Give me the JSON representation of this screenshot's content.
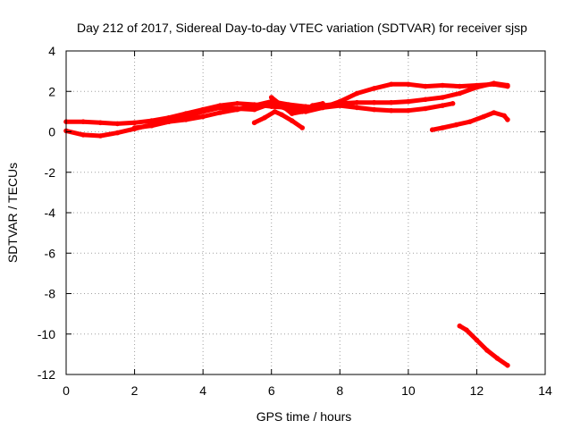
{
  "chart_data": {
    "type": "line",
    "title": "Day 212 of 2017, Sidereal Day-to-day VTEC variation (SDTVAR) for receiver sjsp",
    "xlabel": "GPS time / hours",
    "ylabel": "SDTVAR / TECUs",
    "xlim": [
      0,
      14
    ],
    "ylim": [
      -12,
      4
    ],
    "xticks": [
      "0",
      "2",
      "4",
      "6",
      "8",
      "10",
      "12",
      "14"
    ],
    "yticks": [
      "4",
      "2",
      "0",
      "-2",
      "-4",
      "-6",
      "-8",
      "-10",
      "-12"
    ],
    "grid": true,
    "series_color": "#ff0000",
    "series": [
      {
        "name": "arc-1",
        "x": [
          0,
          0.5,
          1.0,
          1.5,
          2.0,
          2.5,
          3.0,
          3.5,
          4.0,
          4.5,
          5.0,
          5.5,
          6.0,
          6.5,
          7.0,
          7.5,
          8.0,
          8.5,
          9.0,
          9.5,
          10.0,
          10.5,
          11.0,
          11.5,
          12.0,
          12.5,
          12.9
        ],
        "y": [
          0.5,
          0.5,
          0.45,
          0.4,
          0.45,
          0.55,
          0.7,
          0.9,
          1.1,
          1.3,
          1.4,
          1.35,
          1.25,
          1.2,
          1.2,
          1.3,
          1.4,
          1.45,
          1.45,
          1.45,
          1.5,
          1.6,
          1.7,
          1.9,
          2.2,
          2.4,
          2.3
        ]
      },
      {
        "name": "arc-2",
        "x": [
          0,
          0.5,
          1.0,
          1.5,
          2.0,
          2.5,
          3.0,
          3.5,
          4.0,
          4.5,
          5.0,
          5.5,
          6.0,
          6.5,
          7.0,
          7.5,
          8.0,
          8.5,
          9.0,
          9.5,
          10.0,
          10.5,
          11.0,
          11.3
        ],
        "y": [
          0.05,
          -0.15,
          -0.2,
          -0.05,
          0.15,
          0.35,
          0.5,
          0.6,
          0.75,
          0.95,
          1.1,
          1.3,
          1.5,
          1.35,
          1.25,
          1.2,
          1.3,
          1.2,
          1.1,
          1.05,
          1.05,
          1.15,
          1.3,
          1.4
        ]
      },
      {
        "name": "arc-3",
        "x": [
          2.0,
          2.5,
          3.0,
          3.5,
          4.0,
          4.5,
          5.0,
          5.5,
          6.0,
          6.5,
          7.0,
          7.5,
          8.0,
          8.5,
          9.0,
          9.5,
          10.0,
          10.5,
          11.0,
          11.5,
          12.0,
          12.5,
          12.9
        ],
        "y": [
          0.2,
          0.3,
          0.5,
          0.75,
          1.0,
          1.2,
          1.15,
          1.1,
          1.4,
          1.1,
          1.0,
          1.2,
          1.5,
          1.9,
          2.15,
          2.35,
          2.35,
          2.25,
          2.3,
          2.25,
          2.3,
          2.35,
          2.25
        ]
      },
      {
        "name": "arc-4",
        "x": [
          5.5,
          5.8,
          6.1,
          6.3,
          6.6,
          6.9
        ],
        "y": [
          0.45,
          0.7,
          1.0,
          0.85,
          0.55,
          0.2
        ]
      },
      {
        "name": "arc-5",
        "x": [
          6.0,
          6.3,
          6.6,
          6.9,
          7.2,
          7.5
        ],
        "y": [
          1.7,
          1.3,
          0.9,
          1.0,
          1.3,
          1.4
        ]
      },
      {
        "name": "arc-6",
        "x": [
          10.7,
          11.0,
          11.4,
          11.8,
          12.2,
          12.5,
          12.8,
          12.9
        ],
        "y": [
          0.1,
          0.2,
          0.35,
          0.5,
          0.75,
          0.95,
          0.8,
          0.6
        ]
      },
      {
        "name": "arc-7",
        "x": [
          11.5,
          11.7,
          12.0,
          12.3,
          12.6,
          12.9
        ],
        "y": [
          -9.6,
          -9.8,
          -10.3,
          -10.8,
          -11.2,
          -11.55
        ]
      }
    ]
  }
}
